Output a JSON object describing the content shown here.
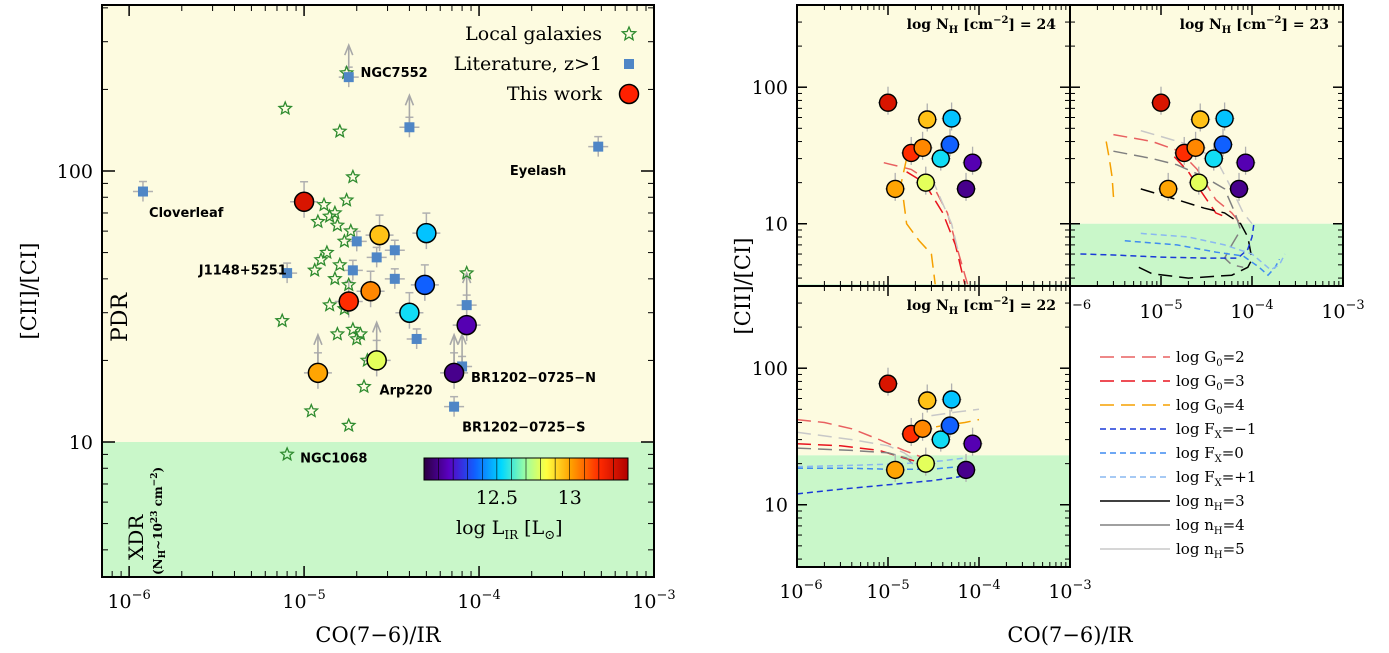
{
  "chart_data": [
    {
      "type": "scatter",
      "xlabel": "CO(7−6)/IR",
      "ylabel": "[CII]/[CI]",
      "xscale": "log",
      "yscale": "log",
      "xlim": [
        7e-07,
        0.001
      ],
      "ylim": [
        3.5,
        400
      ],
      "x_ticks": [
        {
          "value": 1e-06,
          "base": "10",
          "exp": "−6"
        },
        {
          "value": 1e-05,
          "base": "10",
          "exp": "−5"
        },
        {
          "value": 0.0001,
          "base": "10",
          "exp": "−4"
        },
        {
          "value": 0.001,
          "base": "10",
          "exp": "−3"
        }
      ],
      "y_ticks": [
        {
          "value": 10,
          "label": "10"
        },
        {
          "value": 100,
          "label": "100"
        }
      ],
      "regions": [
        {
          "label": "PDR",
          "ymin": 10,
          "ymax": 400,
          "color": "#fdfbe0",
          "label_color": "#f07f1e"
        },
        {
          "label": "XDR",
          "sublabel_base": "(N",
          "sublabel_sub": "H",
          "sublabel_mid": "~10",
          "sublabel_exp": "23",
          "sublabel_unit": " cm",
          "sublabel_unit_exp": "−2",
          "sublabel_end": ")",
          "ymin": 3.5,
          "ymax": 10,
          "color": "#c9f7c9",
          "label_color": "#2a8a2a"
        }
      ],
      "legend": {
        "placement": "top-right",
        "entries": [
          {
            "label": "Local galaxies",
            "marker": "star",
            "color": "#2e8b2e"
          },
          {
            "label": "Literature, z>1",
            "marker": "square",
            "color": "#4f86c6"
          },
          {
            "label": "This work",
            "marker": "circle",
            "color": "#ff2000"
          }
        ]
      },
      "colorbar": {
        "label_text": "log L",
        "label_sub": "IR",
        "label_unit_open": " [L",
        "label_unit_sub": "⊙",
        "label_unit_close": "]",
        "tick_labels": [
          {
            "value": 12.5,
            "label": "12.5"
          },
          {
            "value": 13,
            "label": "13"
          }
        ],
        "range": [
          12.0,
          13.4
        ]
      },
      "series": [
        {
          "name": "Local galaxies",
          "marker": "star",
          "points": [
            {
              "x": 1.75e-05,
              "y": 230
            },
            {
              "x": 7.8e-06,
              "y": 170
            },
            {
              "x": 1.6e-05,
              "y": 140
            },
            {
              "x": 1.9e-05,
              "y": 95
            },
            {
              "x": 1.75e-05,
              "y": 78
            },
            {
              "x": 1.3e-05,
              "y": 75
            },
            {
              "x": 1.5e-05,
              "y": 70
            },
            {
              "x": 1.4e-05,
              "y": 68
            },
            {
              "x": 1.2e-05,
              "y": 65
            },
            {
              "x": 1.55e-05,
              "y": 63
            },
            {
              "x": 1.85e-05,
              "y": 60
            },
            {
              "x": 1.7e-05,
              "y": 55
            },
            {
              "x": 1.35e-05,
              "y": 50
            },
            {
              "x": 1.25e-05,
              "y": 47
            },
            {
              "x": 1.6e-05,
              "y": 45
            },
            {
              "x": 1.15e-05,
              "y": 43
            },
            {
              "x": 1.5e-05,
              "y": 40
            },
            {
              "x": 1.8e-05,
              "y": 38
            },
            {
              "x": 1.4e-05,
              "y": 32
            },
            {
              "x": 1.7e-05,
              "y": 31
            },
            {
              "x": 7.5e-06,
              "y": 28
            },
            {
              "x": 1.9e-05,
              "y": 26
            },
            {
              "x": 1.55e-05,
              "y": 25
            },
            {
              "x": 2.1e-05,
              "y": 25
            },
            {
              "x": 2e-05,
              "y": 24
            },
            {
              "x": 8.5e-05,
              "y": 42
            },
            {
              "x": 2.3e-05,
              "y": 20
            },
            {
              "x": 2.2e-05,
              "y": 16
            },
            {
              "x": 1.1e-05,
              "y": 13
            },
            {
              "x": 1.8e-05,
              "y": 11.5
            },
            {
              "x": 8e-06,
              "y": 9
            }
          ]
        },
        {
          "name": "Literature, z>1",
          "marker": "square",
          "points": [
            {
              "x": 1.2e-06,
              "y": 84
            },
            {
              "x": 1.8e-05,
              "y": 222
            },
            {
              "x": 4e-05,
              "y": 145
            },
            {
              "x": 0.00048,
              "y": 123
            },
            {
              "x": 2e-05,
              "y": 55
            },
            {
              "x": 2.6e-05,
              "y": 48
            },
            {
              "x": 3.3e-05,
              "y": 51
            },
            {
              "x": 1.9e-05,
              "y": 43
            },
            {
              "x": 3.3e-05,
              "y": 40
            },
            {
              "x": 8e-06,
              "y": 42
            },
            {
              "x": 8.5e-05,
              "y": 32
            },
            {
              "x": 4.4e-05,
              "y": 24
            },
            {
              "x": 8e-05,
              "y": 19
            },
            {
              "x": 7.2e-05,
              "y": 13.5
            }
          ]
        },
        {
          "name": "This work",
          "marker": "circle",
          "points": [
            {
              "x": 1e-05,
              "y": 77,
              "logLIR": 13.3
            },
            {
              "x": 1.8e-05,
              "y": 33,
              "logLIR": 13.2
            },
            {
              "x": 2.7e-05,
              "y": 58,
              "logLIR": 12.95
            },
            {
              "x": 2.4e-05,
              "y": 36,
              "logLIR": 13.05
            },
            {
              "x": 1.2e-05,
              "y": 18,
              "logLIR": 13.0
            },
            {
              "x": 2.6e-05,
              "y": 20,
              "logLIR": 12.8
            },
            {
              "x": 4e-05,
              "y": 30,
              "logLIR": 12.55
            },
            {
              "x": 5e-05,
              "y": 59,
              "logLIR": 12.5
            },
            {
              "x": 4.9e-05,
              "y": 38,
              "logLIR": 12.35
            },
            {
              "x": 8.5e-05,
              "y": 27,
              "logLIR": 12.15
            },
            {
              "x": 7.2e-05,
              "y": 18,
              "logLIR": 12.1
            }
          ]
        }
      ],
      "annotations": [
        {
          "text": "NGC7552",
          "x": 2.1e-05,
          "y": 230,
          "color": "#2e8b2e"
        },
        {
          "text": "Eyelash",
          "x": 0.00015,
          "y": 100,
          "color": "#4f86c6"
        },
        {
          "text": "Cloverleaf",
          "x": 1.3e-06,
          "y": 70,
          "color": "#4f86c6"
        },
        {
          "text": "J1148+5251",
          "x": 2.5e-06,
          "y": 43,
          "color": "#4f86c6"
        },
        {
          "text": "Arp220",
          "x": 2.7e-05,
          "y": 15.5,
          "color": "#2e8b2e"
        },
        {
          "text": "BR1202−0725−N",
          "x": 9e-05,
          "y": 17.2,
          "color": "#4f86c6"
        },
        {
          "text": "BR1202−0725−S",
          "x": 8e-05,
          "y": 11.3,
          "color": "#4f86c6"
        },
        {
          "text": "NGC1068",
          "x": 9.5e-06,
          "y": 8.7,
          "color": "#2e8b2e"
        }
      ]
    },
    {
      "type": "line",
      "ylabel": "[CII]/[CI]",
      "xlabel": "CO(7−6)/IR",
      "xscale": "log",
      "yscale": "log",
      "xlim": [
        1e-06,
        0.001
      ],
      "ylim": [
        3.5,
        400
      ],
      "y_ticks": [
        {
          "value": 10,
          "label": "10"
        },
        {
          "value": 100,
          "label": "100"
        }
      ],
      "x_ticks": [
        {
          "value": 1e-06,
          "base": "10",
          "exp": "−6"
        },
        {
          "value": 1e-05,
          "base": "10",
          "exp": "−5"
        },
        {
          "value": 0.0001,
          "base": "10",
          "exp": "−4"
        },
        {
          "value": 0.001,
          "base": "10",
          "exp": "−3"
        }
      ],
      "panels": [
        {
          "title_pre": "log N",
          "title_sub": "H",
          "title_mid": " [cm",
          "title_exp": "−2",
          "title_end": "] = 24",
          "xdr_below": 3.6
        },
        {
          "title_pre": "log N",
          "title_sub": "H",
          "title_mid": " [cm",
          "title_exp": "−2",
          "title_end": "] = 23",
          "xdr_below": 10
        },
        {
          "title_pre": "log N",
          "title_sub": "H",
          "title_mid": " [cm",
          "title_exp": "−2",
          "title_end": "] = 22",
          "xdr_below": 23
        }
      ],
      "legend": {
        "placement": "lower-right",
        "entries": [
          {
            "pre": "log G",
            "sub": "0",
            "post": "=2",
            "color": "#e86060",
            "dash": "long"
          },
          {
            "pre": "log G",
            "sub": "0",
            "post": "=3",
            "color": "#e8141e",
            "dash": "long"
          },
          {
            "pre": "log G",
            "sub": "0",
            "post": "=4",
            "color": "#f5a000",
            "dash": "long"
          },
          {
            "pre": "log F",
            "sub": "X",
            "post": "=−1",
            "color": "#1a3ad8",
            "dash": "short"
          },
          {
            "pre": "log F",
            "sub": "X",
            "post": "=0",
            "color": "#3f8cf0",
            "dash": "short"
          },
          {
            "pre": "log F",
            "sub": "X",
            "post": "=+1",
            "color": "#8ab8f0",
            "dash": "short"
          },
          {
            "pre": "log n",
            "sub": "H",
            "post": "=3",
            "color": "#000000",
            "dash": "solid"
          },
          {
            "pre": "log n",
            "sub": "H",
            "post": "=4",
            "color": "#808080",
            "dash": "solid"
          },
          {
            "pre": "log n",
            "sub": "H",
            "post": "=5",
            "color": "#c8c8c8",
            "dash": "solid"
          }
        ]
      },
      "data_points": [
        {
          "x": 1e-05,
          "y": 77,
          "logLIR": 13.3
        },
        {
          "x": 1.8e-05,
          "y": 33,
          "logLIR": 13.2
        },
        {
          "x": 2.7e-05,
          "y": 58,
          "logLIR": 12.95
        },
        {
          "x": 2.4e-05,
          "y": 36,
          "logLIR": 13.05
        },
        {
          "x": 1.2e-05,
          "y": 18,
          "logLIR": 13.0
        },
        {
          "x": 2.6e-05,
          "y": 20,
          "logLIR": 12.8
        },
        {
          "x": 3.8e-05,
          "y": 30,
          "logLIR": 12.55
        },
        {
          "x": 5e-05,
          "y": 59,
          "logLIR": 12.5
        },
        {
          "x": 4.8e-05,
          "y": 38,
          "logLIR": 12.35
        },
        {
          "x": 8.5e-05,
          "y": 28,
          "logLIR": 12.15
        },
        {
          "x": 7.2e-05,
          "y": 18,
          "logLIR": 12.1
        }
      ]
    }
  ]
}
